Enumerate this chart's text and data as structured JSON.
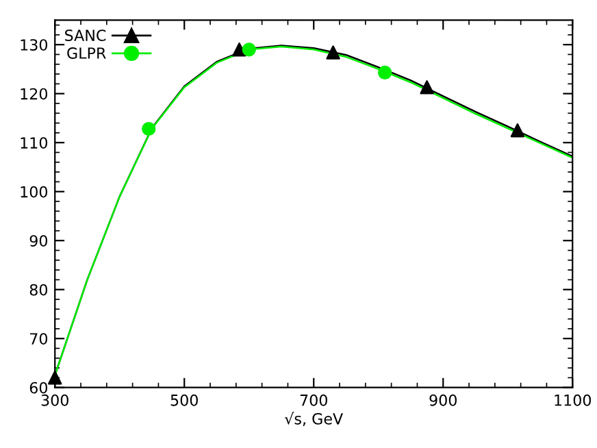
{
  "chart_data": {
    "type": "line",
    "xlabel": "√s, GeV",
    "xlim": [
      300,
      1100
    ],
    "xticks": [
      300,
      500,
      700,
      900,
      1100
    ],
    "ylim": [
      60,
      135
    ],
    "yticks": [
      60,
      70,
      80,
      90,
      100,
      110,
      120,
      130
    ],
    "grid": false,
    "legend": "top left",
    "series": [
      {
        "name": "SANC",
        "color": "#000000",
        "marker": "none",
        "x": [
          300,
          350,
          400,
          450,
          500,
          550,
          600,
          650,
          700,
          750,
          800,
          850,
          900,
          950,
          1000,
          1050,
          1100
        ],
        "values": [
          62.5,
          82,
          99,
          113,
          121.5,
          126.5,
          129.2,
          129.8,
          129.3,
          127.9,
          125.4,
          122.7,
          119.5,
          116.3,
          113.3,
          110.2,
          107.2
        ]
      },
      {
        "type": "scatter",
        "color": "#000000",
        "marker": "triangle",
        "x": [
          300,
          585,
          730,
          875,
          1015
        ],
        "values": [
          62,
          129,
          128.4,
          121.3,
          112.5
        ]
      },
      {
        "name": "GLPR",
        "color": "#00ee00",
        "marker": "none",
        "x": [
          300,
          350,
          400,
          450,
          500,
          550,
          600,
          650,
          700,
          750,
          800,
          850,
          900,
          950,
          1000,
          1050,
          1100
        ],
        "values": [
          62.5,
          82,
          99,
          112.9,
          121.3,
          126.3,
          129,
          129.6,
          129,
          127.5,
          125,
          122.3,
          119.1,
          115.9,
          112.9,
          109.9,
          106.9
        ]
      },
      {
        "type": "scatter",
        "color": "#00ee00",
        "marker": "circle",
        "x": [
          445,
          600,
          810
        ],
        "values": [
          112.8,
          129,
          124.3
        ]
      }
    ]
  }
}
